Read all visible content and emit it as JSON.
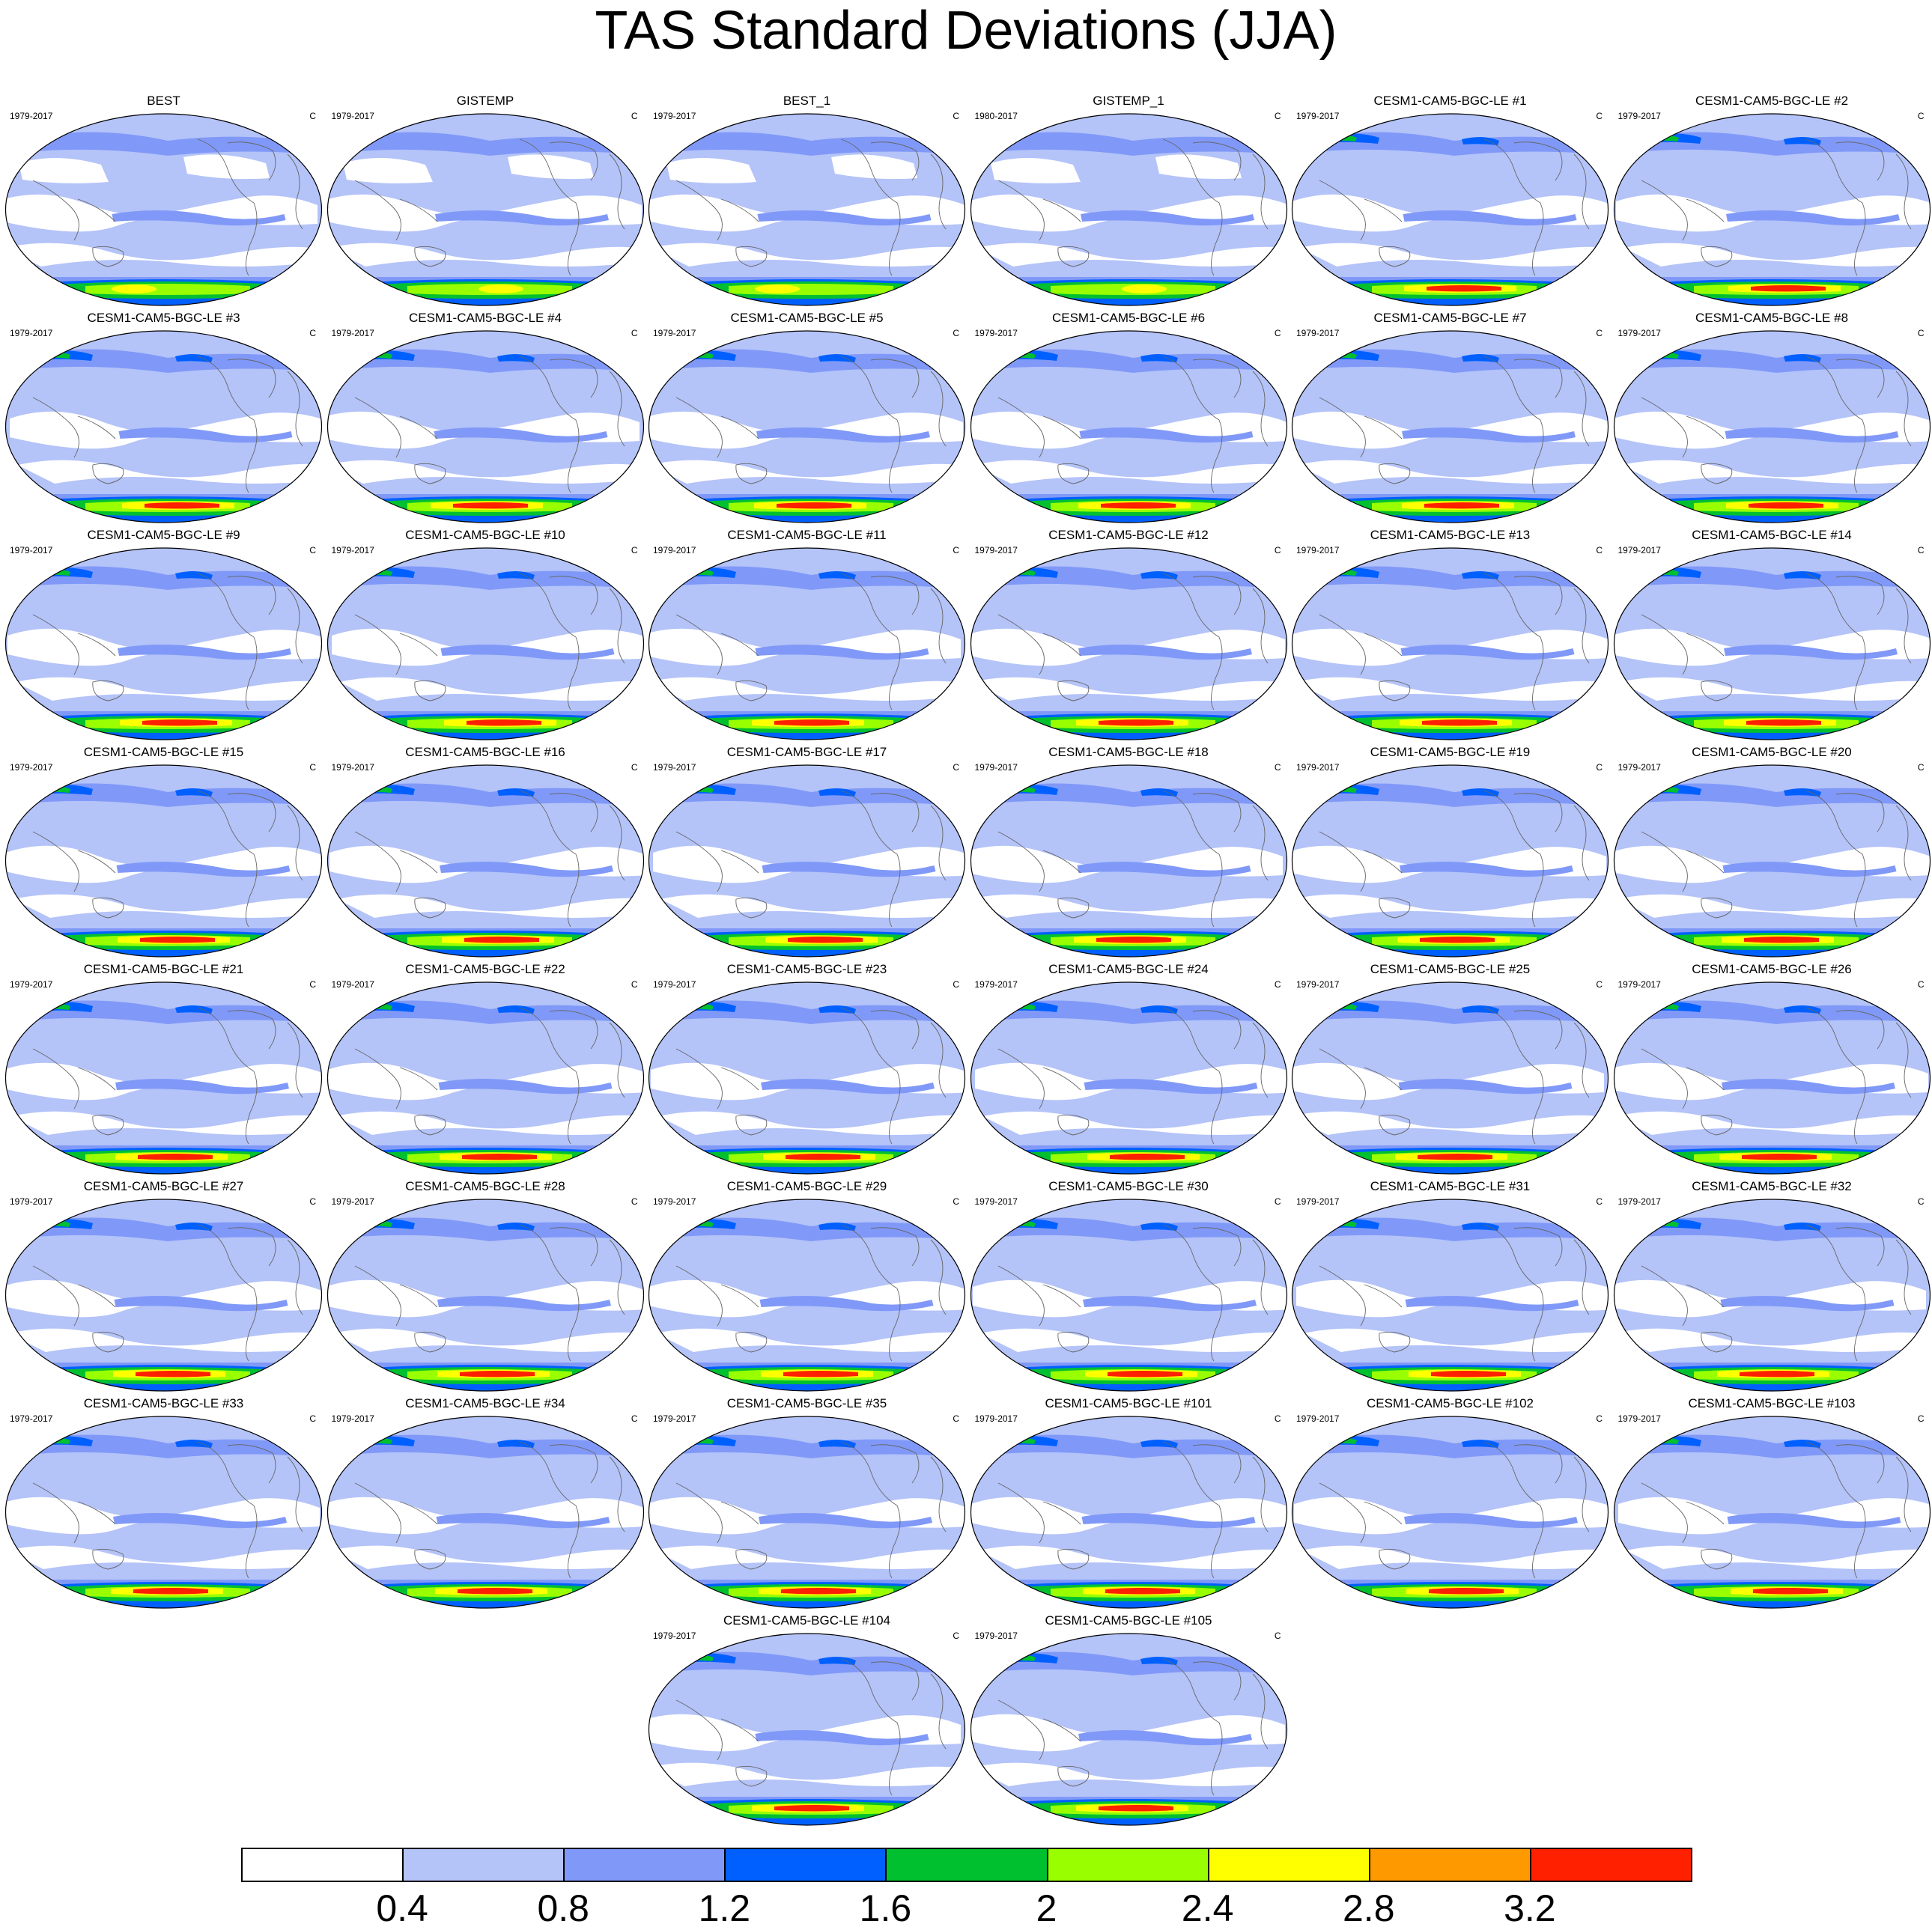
{
  "figure": {
    "title": "TAS Standard Deviations (JJA)",
    "panel_unit": "C"
  },
  "panels": [
    {
      "title": "BEST",
      "period": "1979-2017",
      "kind": "obs"
    },
    {
      "title": "GISTEMP",
      "period": "1979-2017",
      "kind": "obs"
    },
    {
      "title": "BEST_1",
      "period": "1979-2017",
      "kind": "obs"
    },
    {
      "title": "GISTEMP_1",
      "period": "1980-2017",
      "kind": "obs"
    },
    {
      "title": "CESM1-CAM5-BGC-LE #1",
      "period": "1979-2017",
      "kind": "model"
    },
    {
      "title": "CESM1-CAM5-BGC-LE #2",
      "period": "1979-2017",
      "kind": "model"
    },
    {
      "title": "CESM1-CAM5-BGC-LE #3",
      "period": "1979-2017",
      "kind": "model"
    },
    {
      "title": "CESM1-CAM5-BGC-LE #4",
      "period": "1979-2017",
      "kind": "model"
    },
    {
      "title": "CESM1-CAM5-BGC-LE #5",
      "period": "1979-2017",
      "kind": "model"
    },
    {
      "title": "CESM1-CAM5-BGC-LE #6",
      "period": "1979-2017",
      "kind": "model"
    },
    {
      "title": "CESM1-CAM5-BGC-LE #7",
      "period": "1979-2017",
      "kind": "model"
    },
    {
      "title": "CESM1-CAM5-BGC-LE #8",
      "period": "1979-2017",
      "kind": "model"
    },
    {
      "title": "CESM1-CAM5-BGC-LE #9",
      "period": "1979-2017",
      "kind": "model"
    },
    {
      "title": "CESM1-CAM5-BGC-LE #10",
      "period": "1979-2017",
      "kind": "model"
    },
    {
      "title": "CESM1-CAM5-BGC-LE #11",
      "period": "1979-2017",
      "kind": "model"
    },
    {
      "title": "CESM1-CAM5-BGC-LE #12",
      "period": "1979-2017",
      "kind": "model"
    },
    {
      "title": "CESM1-CAM5-BGC-LE #13",
      "period": "1979-2017",
      "kind": "model"
    },
    {
      "title": "CESM1-CAM5-BGC-LE #14",
      "period": "1979-2017",
      "kind": "model"
    },
    {
      "title": "CESM1-CAM5-BGC-LE #15",
      "period": "1979-2017",
      "kind": "model"
    },
    {
      "title": "CESM1-CAM5-BGC-LE #16",
      "period": "1979-2017",
      "kind": "model"
    },
    {
      "title": "CESM1-CAM5-BGC-LE #17",
      "period": "1979-2017",
      "kind": "model"
    },
    {
      "title": "CESM1-CAM5-BGC-LE #18",
      "period": "1979-2017",
      "kind": "model"
    },
    {
      "title": "CESM1-CAM5-BGC-LE #19",
      "period": "1979-2017",
      "kind": "model"
    },
    {
      "title": "CESM1-CAM5-BGC-LE #20",
      "period": "1979-2017",
      "kind": "model"
    },
    {
      "title": "CESM1-CAM5-BGC-LE #21",
      "period": "1979-2017",
      "kind": "model"
    },
    {
      "title": "CESM1-CAM5-BGC-LE #22",
      "period": "1979-2017",
      "kind": "model"
    },
    {
      "title": "CESM1-CAM5-BGC-LE #23",
      "period": "1979-2017",
      "kind": "model"
    },
    {
      "title": "CESM1-CAM5-BGC-LE #24",
      "period": "1979-2017",
      "kind": "model"
    },
    {
      "title": "CESM1-CAM5-BGC-LE #25",
      "period": "1979-2017",
      "kind": "model"
    },
    {
      "title": "CESM1-CAM5-BGC-LE #26",
      "period": "1979-2017",
      "kind": "model"
    },
    {
      "title": "CESM1-CAM5-BGC-LE #27",
      "period": "1979-2017",
      "kind": "model"
    },
    {
      "title": "CESM1-CAM5-BGC-LE #28",
      "period": "1979-2017",
      "kind": "model"
    },
    {
      "title": "CESM1-CAM5-BGC-LE #29",
      "period": "1979-2017",
      "kind": "model"
    },
    {
      "title": "CESM1-CAM5-BGC-LE #30",
      "period": "1979-2017",
      "kind": "model"
    },
    {
      "title": "CESM1-CAM5-BGC-LE #31",
      "period": "1979-2017",
      "kind": "model"
    },
    {
      "title": "CESM1-CAM5-BGC-LE #32",
      "period": "1979-2017",
      "kind": "model"
    },
    {
      "title": "CESM1-CAM5-BGC-LE #33",
      "period": "1979-2017",
      "kind": "model"
    },
    {
      "title": "CESM1-CAM5-BGC-LE #34",
      "period": "1979-2017",
      "kind": "model"
    },
    {
      "title": "CESM1-CAM5-BGC-LE #35",
      "period": "1979-2017",
      "kind": "model"
    },
    {
      "title": "CESM1-CAM5-BGC-LE #101",
      "period": "1979-2017",
      "kind": "model"
    },
    {
      "title": "CESM1-CAM5-BGC-LE #102",
      "period": "1979-2017",
      "kind": "model"
    },
    {
      "title": "CESM1-CAM5-BGC-LE #103",
      "period": "1979-2017",
      "kind": "model"
    },
    {
      "title": "CESM1-CAM5-BGC-LE #104",
      "period": "1979-2017",
      "kind": "model"
    },
    {
      "title": "CESM1-CAM5-BGC-LE #105",
      "period": "1979-2017",
      "kind": "model"
    }
  ],
  "colorbar": {
    "colors": [
      "#ffffff",
      "#b4c3f8",
      "#8099f8",
      "#0060ff",
      "#00c030",
      "#99ff00",
      "#ffff00",
      "#ff9900",
      "#ff2000"
    ],
    "labels": [
      "0.4",
      "0.8",
      "1.2",
      "1.6",
      "2",
      "2.4",
      "2.8",
      "3.2"
    ]
  }
}
